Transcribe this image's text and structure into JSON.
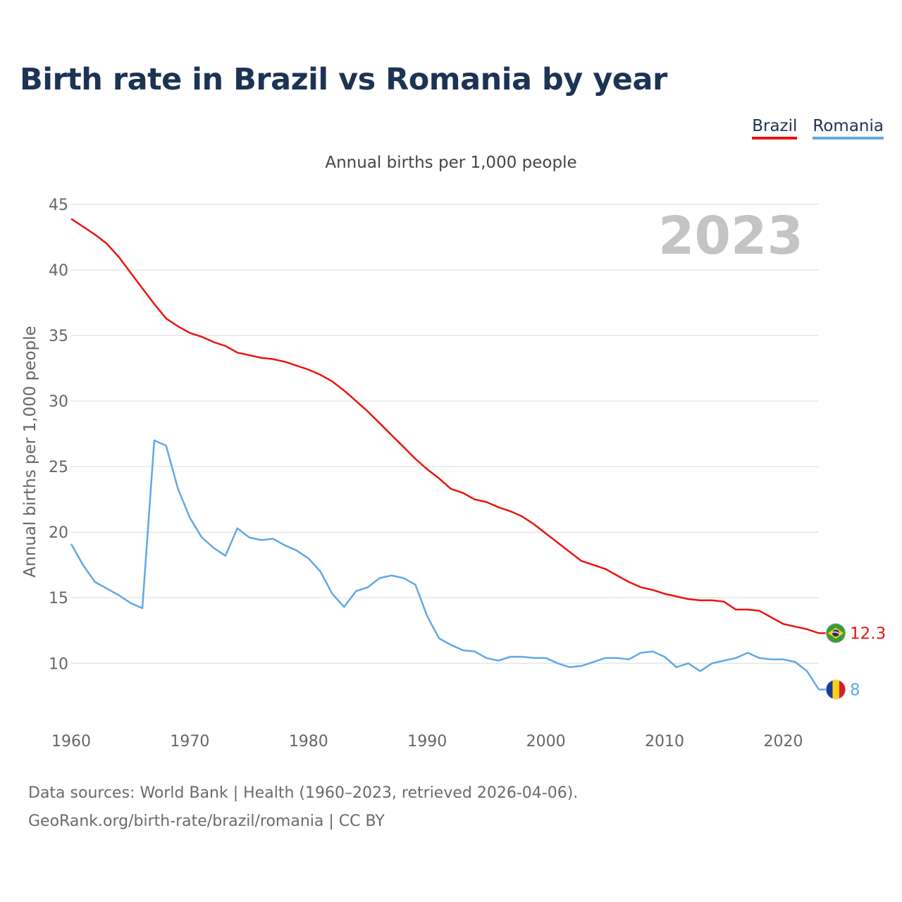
{
  "title": "Birth rate in Brazil vs Romania by year",
  "subtitle": "Annual births per 1,000 people",
  "legend": {
    "brazil": "Brazil",
    "romania": "Romania"
  },
  "year_label": "2023",
  "footer": {
    "line1": "Data sources: World Bank | Health (1960–2023, retrieved 2026-04-06).",
    "line2": "GeoRank.org/birth-rate/brazil/romania | CC BY"
  },
  "colors": {
    "brazil": "#e8150e",
    "romania": "#62a8e5",
    "grid": "#e6e6e6",
    "axis_text": "#666666"
  },
  "chart_data": {
    "type": "line",
    "title": "Birth rate in Brazil vs Romania by year",
    "ylabel": "Annual births per 1,000 people",
    "xlabel": "",
    "xlim": [
      1960,
      2023
    ],
    "ylim": [
      5.5,
      45
    ],
    "yticks": [
      10,
      15,
      20,
      25,
      30,
      35,
      40,
      45
    ],
    "xticks": [
      1960,
      1970,
      1980,
      1990,
      2000,
      2010,
      2020
    ],
    "grid": true,
    "legend_position": "top-right",
    "x": [
      1960,
      1961,
      1962,
      1963,
      1964,
      1965,
      1966,
      1967,
      1968,
      1969,
      1970,
      1971,
      1972,
      1973,
      1974,
      1975,
      1976,
      1977,
      1978,
      1979,
      1980,
      1981,
      1982,
      1983,
      1984,
      1985,
      1986,
      1987,
      1988,
      1989,
      1990,
      1991,
      1992,
      1993,
      1994,
      1995,
      1996,
      1997,
      1998,
      1999,
      2000,
      2001,
      2002,
      2003,
      2004,
      2005,
      2006,
      2007,
      2008,
      2009,
      2010,
      2011,
      2012,
      2013,
      2014,
      2015,
      2016,
      2017,
      2018,
      2019,
      2020,
      2021,
      2022,
      2023
    ],
    "series": [
      {
        "name": "Brazil",
        "color": "#e8150e",
        "end_label": "12.3",
        "values": [
          43.9,
          43.3,
          42.7,
          42.0,
          41.0,
          39.8,
          38.6,
          37.4,
          36.3,
          35.7,
          35.2,
          34.9,
          34.5,
          34.2,
          33.7,
          33.5,
          33.3,
          33.2,
          33.0,
          32.7,
          32.4,
          32.0,
          31.5,
          30.8,
          30.0,
          29.2,
          28.3,
          27.4,
          26.5,
          25.6,
          24.8,
          24.1,
          23.3,
          23.0,
          22.5,
          22.3,
          21.9,
          21.6,
          21.2,
          20.6,
          19.9,
          19.2,
          18.5,
          17.8,
          17.5,
          17.2,
          16.7,
          16.2,
          15.8,
          15.6,
          15.3,
          15.1,
          14.9,
          14.8,
          14.8,
          14.7,
          14.1,
          14.1,
          14.0,
          13.5,
          13.0,
          12.8,
          12.6,
          12.3
        ]
      },
      {
        "name": "Romania",
        "color": "#62a8e5",
        "end_label": "8",
        "values": [
          19.1,
          17.5,
          16.2,
          15.7,
          15.2,
          14.6,
          14.2,
          27.0,
          26.6,
          23.3,
          21.1,
          19.6,
          18.8,
          18.2,
          20.3,
          19.6,
          19.4,
          19.5,
          19.0,
          18.6,
          18.0,
          17.0,
          15.3,
          14.3,
          15.5,
          15.8,
          16.5,
          16.7,
          16.5,
          16.0,
          13.6,
          11.9,
          11.4,
          11.0,
          10.9,
          10.4,
          10.2,
          10.5,
          10.5,
          10.4,
          10.4,
          10.0,
          9.7,
          9.8,
          10.1,
          10.4,
          10.4,
          10.3,
          10.8,
          10.9,
          10.5,
          9.7,
          10.0,
          9.4,
          10.0,
          10.2,
          10.4,
          10.8,
          10.4,
          10.3,
          10.3,
          10.1,
          9.4,
          8.0
        ]
      }
    ]
  }
}
